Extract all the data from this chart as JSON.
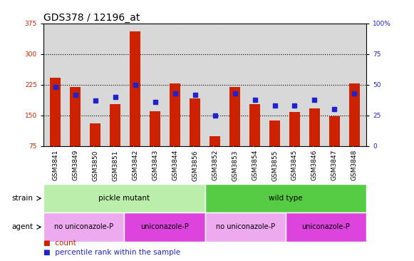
{
  "title": "GDS378 / 12196_at",
  "samples": [
    "GSM3841",
    "GSM3849",
    "GSM3850",
    "GSM3851",
    "GSM3842",
    "GSM3843",
    "GSM3844",
    "GSM3856",
    "GSM3852",
    "GSM3853",
    "GSM3854",
    "GSM3855",
    "GSM3845",
    "GSM3846",
    "GSM3847",
    "GSM3848"
  ],
  "counts": [
    243,
    220,
    130,
    178,
    355,
    160,
    228,
    192,
    100,
    220,
    178,
    138,
    158,
    168,
    148,
    228
  ],
  "percentiles": [
    48,
    42,
    37,
    40,
    50,
    36,
    43,
    42,
    25,
    43,
    38,
    33,
    33,
    38,
    30,
    43
  ],
  "left_yticks": [
    75,
    150,
    225,
    300,
    375
  ],
  "right_yticks": [
    0,
    25,
    50,
    75,
    100
  ],
  "ylim_left": [
    75,
    375
  ],
  "ylim_right": [
    0,
    100
  ],
  "bar_color": "#cc2200",
  "dot_color": "#2222cc",
  "plot_bg_color": "#d8d8d8",
  "tick_label_bg": "#cccccc",
  "strains": [
    {
      "label": "pickle mutant",
      "start": 0,
      "end": 8,
      "color": "#bbeeaa"
    },
    {
      "label": "wild type",
      "start": 8,
      "end": 16,
      "color": "#55cc44"
    }
  ],
  "agents": [
    {
      "label": "no uniconazole-P",
      "start": 0,
      "end": 4,
      "color": "#eeaaee"
    },
    {
      "label": "uniconazole-P",
      "start": 4,
      "end": 8,
      "color": "#dd44dd"
    },
    {
      "label": "no uniconazole-P",
      "start": 8,
      "end": 12,
      "color": "#eeaaee"
    },
    {
      "label": "uniconazole-P",
      "start": 12,
      "end": 16,
      "color": "#dd44dd"
    }
  ],
  "legend_count_label": "count",
  "legend_pct_label": "percentile rank within the sample",
  "bar_width": 0.55,
  "dot_size": 20,
  "dot_marker": "s",
  "grid_color": "black",
  "grid_style": "dotted",
  "grid_linewidth": 0.8,
  "title_fontsize": 10,
  "tick_fontsize": 6.5,
  "label_fontsize": 7.5,
  "annotation_fontsize": 7.5,
  "row_label_fontsize": 7.5
}
